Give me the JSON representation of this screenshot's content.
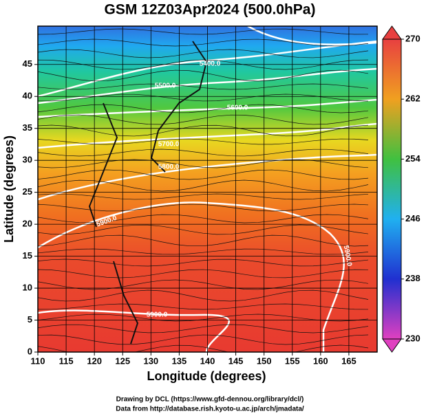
{
  "chart_data": {
    "type": "map",
    "title": "GSM 12Z03Apr2024 (500.0hPa)",
    "x_label": "Longitude (degrees)",
    "y_label": "Latitude  (degrees)",
    "xlim": [
      110,
      170
    ],
    "ylim": [
      0,
      51
    ],
    "xticks": [
      110,
      115,
      120,
      125,
      130,
      135,
      140,
      145,
      150,
      155,
      160,
      165
    ],
    "yticks": [
      0,
      5,
      10,
      15,
      20,
      25,
      30,
      35,
      40,
      45
    ],
    "grid": true,
    "contour_labels": [
      "5400.0",
      "5500.0",
      "5600.0",
      "5700.0",
      "5800.0",
      "5900.0",
      "5900.0",
      "5900.0"
    ],
    "colorbar": {
      "lim": [
        230,
        270
      ],
      "ticks": [
        230,
        238,
        246,
        254,
        262,
        270
      ],
      "colors": [
        "#e040c0",
        "#2030d0",
        "#20b0f0",
        "#40c040",
        "#f0a020",
        "#e84040"
      ]
    },
    "credits": [
      "Drawing by DCL (https://www.gfd-dennou.org/library/dcl/)",
      "Data from http://database.rish.kyoto-u.ac.jp/arch/jmadata/"
    ]
  }
}
